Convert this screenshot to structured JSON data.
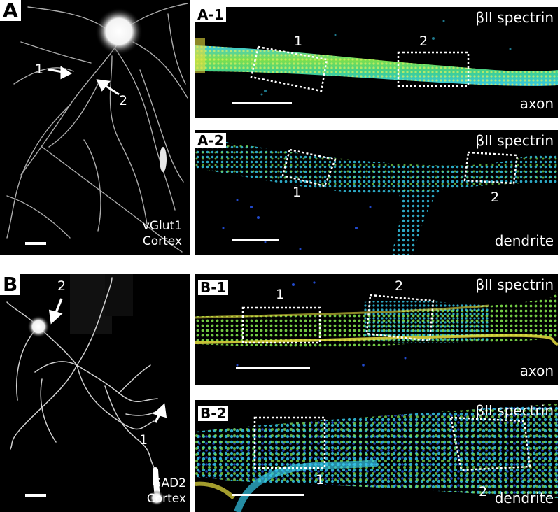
{
  "figure": {
    "panel_A": {
      "label": "A",
      "cell_line1": "vGlut1",
      "cell_line2": "Cortex",
      "arrow1_label": "1",
      "arrow2_label": "2"
    },
    "panel_A1": {
      "label": "A-1",
      "stain": "βII spectrin",
      "type": "axon",
      "box1": "1",
      "box2": "2"
    },
    "panel_A2": {
      "label": "A-2",
      "stain": "βII spectrin",
      "type": "dendrite",
      "box1": "1",
      "box2": "2"
    },
    "panel_B": {
      "label": "B",
      "cell_line1": "GAD2",
      "cell_line2": "Cortex",
      "arrow1_label": "1",
      "arrow2_label": "2"
    },
    "panel_B1": {
      "label": "B-1",
      "stain": "βII spectrin",
      "type": "axon",
      "box1": "1",
      "box2": "2"
    },
    "panel_B2": {
      "label": "B-2",
      "stain": "βII spectrin",
      "type": "dendrite",
      "box1": "1",
      "box2": "2"
    }
  },
  "colors": {
    "background": "#000000",
    "fluor_green": "#7fe04a",
    "fluor_cyan": "#34c7e8",
    "fluor_yellow": "#e8e040",
    "fluor_blue": "#2a5cff",
    "box_stroke": "#ffffff"
  }
}
